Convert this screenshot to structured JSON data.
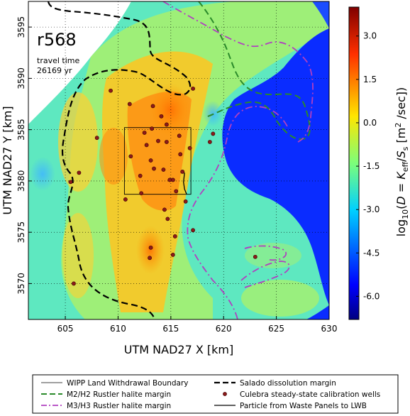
{
  "chart_data": {
    "type": "heatmap",
    "run_label": "r568",
    "annotation_lines": [
      "travel time",
      "26169 yr"
    ],
    "xlabel": "UTM NAD27 X [km]",
    "ylabel": "UTM NAD27 Y [km]",
    "xlim": [
      601.5,
      630
    ],
    "ylim": [
      3566.5,
      3597.5
    ],
    "x_ticks": [
      605,
      610,
      615,
      620,
      625,
      630
    ],
    "y_ticks": [
      3570,
      3575,
      3580,
      3585,
      3590,
      3595
    ],
    "grid": "dotted",
    "colorbar": {
      "label": "log10(D = K_eff / S_s [m^2/sec])",
      "range": [
        -6.8,
        4.0
      ],
      "ticks": [
        "3.0",
        "1.5",
        "0.0",
        "-1.5",
        "-3.0",
        "-4.5",
        "-6.0"
      ],
      "tick_values": [
        3.0,
        1.5,
        0.0,
        -1.5,
        -3.0,
        -4.5,
        -6.0
      ]
    },
    "boundary_box": {
      "x": [
        610.6,
        616.9
      ],
      "y": [
        3578.7,
        3585.2
      ]
    },
    "wells": [
      [
        609.3,
        3588.8
      ],
      [
        611.2,
        3582.4
      ],
      [
        612.7,
        3583.5
      ],
      [
        613.1,
        3582.0
      ],
      [
        613.4,
        3581.2
      ],
      [
        612.1,
        3580.5
      ],
      [
        614.3,
        3581.1
      ],
      [
        614.9,
        3580.1
      ],
      [
        615.2,
        3580.1
      ],
      [
        616.1,
        3580.9
      ],
      [
        615.9,
        3582.6
      ],
      [
        616.8,
        3583.2
      ],
      [
        614.6,
        3583.8
      ],
      [
        613.8,
        3583.9
      ],
      [
        612.5,
        3584.7
      ],
      [
        613.2,
        3585.1
      ],
      [
        614.6,
        3585.5
      ],
      [
        615.8,
        3584.4
      ],
      [
        618.7,
        3583.8
      ],
      [
        613.3,
        3587.3
      ],
      [
        614.1,
        3586.3
      ],
      [
        611.1,
        3587.5
      ],
      [
        608.0,
        3584.2
      ],
      [
        606.3,
        3580.8
      ],
      [
        605.5,
        3579.9
      ],
      [
        610.7,
        3578.2
      ],
      [
        612.2,
        3578.8
      ],
      [
        615.5,
        3579.0
      ],
      [
        614.4,
        3577.2
      ],
      [
        616.4,
        3578.0
      ],
      [
        617.1,
        3575.2
      ],
      [
        615.4,
        3574.6
      ],
      [
        614.7,
        3576.3
      ],
      [
        613.1,
        3573.5
      ],
      [
        613.0,
        3572.5
      ],
      [
        615.2,
        3572.8
      ],
      [
        623.0,
        3572.6
      ],
      [
        605.8,
        3570.0
      ],
      [
        617.1,
        3589.0
      ],
      [
        619.0,
        3584.6
      ]
    ],
    "particle_path": [
      [
        616.3,
        3580.8
      ],
      [
        616.2,
        3579.9
      ],
      [
        616.3,
        3579.2
      ],
      [
        616.5,
        3578.7
      ]
    ],
    "legend": {
      "placement": "bottom",
      "entries": [
        {
          "label": "WIPP Land Withdrawal Boundary",
          "style": "thin-solid",
          "color": "#000000"
        },
        {
          "label": "Salado dissolution margin",
          "style": "dashed",
          "color": "#000000"
        },
        {
          "label": "M2/H2 Rustler halite margin",
          "style": "dashed",
          "color": "#2a8a2a"
        },
        {
          "label": "Culebra steady-state calibration wells",
          "style": "dot",
          "color": "#8b1a1a"
        },
        {
          "label": "M3/H3 Rustler halite margin",
          "style": "dashdot",
          "color": "#b040c0"
        },
        {
          "label": "Particle from Waste Panels to LWB",
          "style": "solid",
          "color": "#000000"
        }
      ]
    }
  }
}
